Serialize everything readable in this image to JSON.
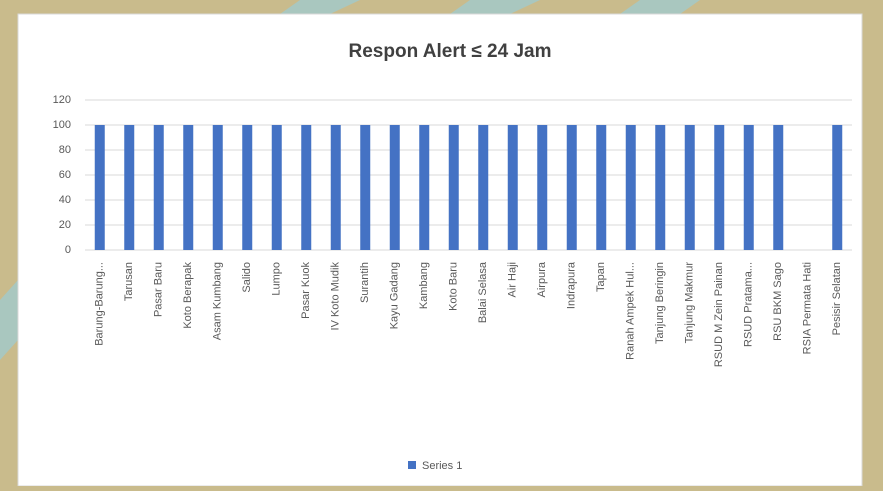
{
  "chart_data": {
    "type": "bar",
    "title": "Respon Alert ≤ 24 Jam",
    "categories": [
      "Barung-Barung...",
      "Tarusan",
      "Pasar Baru",
      "Koto Berapak",
      "Asam Kumbang",
      "Salido",
      "Lumpo",
      "Pasar Kuok",
      "IV Koto Mudik",
      "Surantih",
      "Kayu Gadang",
      "Kambang",
      "Koto Baru",
      "Balai Selasa",
      "Air Haji",
      "Airpura",
      "Indrapura",
      "Tapan",
      "Ranah Ampek Hul...",
      "Tanjung Beringin",
      "Tanjung Makmur",
      "RSUD M Zein Painan",
      "RSUD Pratama...",
      "RSU BKM Sago",
      "RSIA Permata Hati",
      "Pesisir Selatan"
    ],
    "series": [
      {
        "name": "Series 1",
        "color": "#4472c4",
        "values": [
          100,
          100,
          100,
          100,
          100,
          100,
          100,
          100,
          100,
          100,
          100,
          100,
          100,
          100,
          100,
          100,
          100,
          100,
          100,
          100,
          100,
          100,
          100,
          100,
          0,
          100
        ]
      }
    ],
    "ylim": [
      0,
      120
    ],
    "yticks": [
      0,
      20,
      40,
      60,
      80,
      100,
      120
    ],
    "grid": true,
    "legend": "bottom"
  }
}
